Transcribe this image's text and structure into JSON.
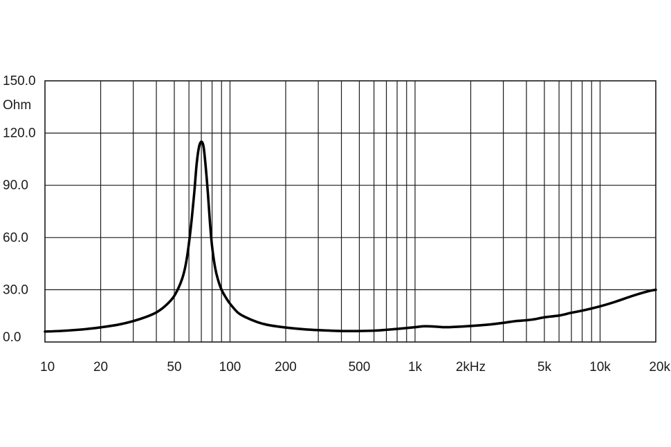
{
  "chart_data": {
    "type": "line",
    "title": "",
    "xscale": "log",
    "xlim": [
      10,
      20000
    ],
    "ylim": [
      0,
      150
    ],
    "grid": true,
    "y_unit_label": "Ohm",
    "y_tick_values": [
      0,
      30,
      60,
      90,
      120,
      150
    ],
    "y_tick_labels": [
      "0.0",
      "30.0",
      "60.0",
      "90.0",
      "120.0",
      "150.0"
    ],
    "x_tick_values": [
      10,
      20,
      50,
      100,
      200,
      500,
      1000,
      2000,
      5000,
      10000,
      20000
    ],
    "x_tick_labels": [
      "10",
      "20",
      "50",
      "100",
      "200",
      "500",
      "1k",
      "2kHz",
      "5k",
      "10k",
      "20k"
    ],
    "series": [
      {
        "x": [
          10,
          12,
          15,
          18,
          20,
          25,
          30,
          35,
          40,
          45,
          50,
          55,
          58,
          61,
          64,
          66,
          68,
          70,
          72,
          74,
          76,
          78,
          80,
          83,
          86,
          90,
          95,
          100,
          110,
          120,
          140,
          160,
          200,
          250,
          300,
          400,
          500,
          600,
          700,
          800,
          900,
          1000,
          1100,
          1200,
          1300,
          1500,
          2000,
          2500,
          3000,
          3500,
          4000,
          4500,
          5000,
          6000,
          7000,
          8000,
          10000,
          12000,
          15000,
          18000,
          20000
        ],
        "y": [
          6,
          6.3,
          7,
          7.8,
          8.4,
          10,
          12,
          14.3,
          17,
          21,
          26.5,
          36,
          46,
          63,
          85,
          102,
          112,
          115,
          112,
          100,
          85,
          68,
          55,
          43,
          36,
          30,
          25.5,
          22,
          17,
          14.5,
          11.5,
          9.8,
          8.3,
          7.3,
          6.8,
          6.3,
          6.3,
          6.5,
          7,
          7.5,
          8,
          8.5,
          9,
          9,
          8.8,
          8.5,
          9.2,
          10,
          11,
          12,
          12.5,
          13.2,
          14.2,
          15.2,
          16.8,
          18,
          20.5,
          23,
          26.5,
          29,
          30
        ]
      }
    ]
  }
}
